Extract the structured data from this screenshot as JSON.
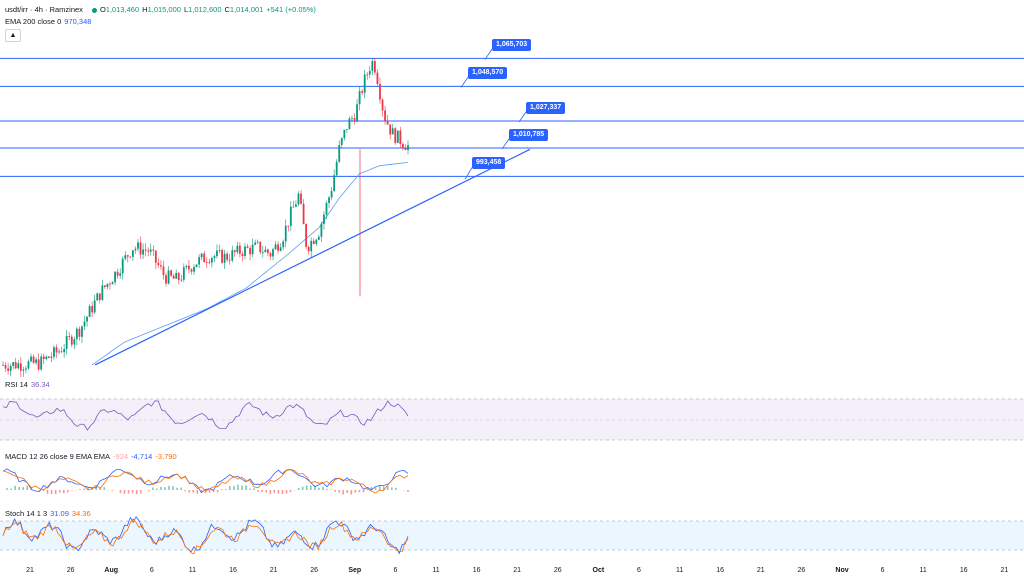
{
  "header": {
    "symbol": "usdt/irr · 4h · Ramzinex",
    "open_label": "O",
    "open": "1,013,460",
    "high_label": "H",
    "high": "1,015,000",
    "low_label": "L",
    "low": "1,012,600",
    "close_label": "C",
    "close": "1,014,001",
    "change": "+541 (+0.05%)",
    "ema_label": "EMA 200 close 0",
    "ema_value": "970,348",
    "collapse_icon": "chevron-up-icon"
  },
  "indicators": {
    "rsi": {
      "label": "RSI 14",
      "value": "36.34",
      "upper": 70,
      "lower": 30
    },
    "macd": {
      "label": "MACD 12 26 close 9 EMA EMA",
      "hist": "-924",
      "macd": "-4,714",
      "signal": "-3,790"
    },
    "stoch": {
      "label": "Stoch 14 1 3",
      "k": "31.09",
      "d": "34.36",
      "upper": 80,
      "lower": 20
    }
  },
  "colors": {
    "up": "#089981",
    "down": "#f23645",
    "ema": "#5b9cf6",
    "level": "#2962ff",
    "rsi": "#7e57c2",
    "macd": "#2962ff",
    "signal": "#ff6d00",
    "stoch_k": "#2962ff",
    "stoch_d": "#ff6d00"
  },
  "chart_data": {
    "type": "line",
    "price_scale": {
      "min": 870000,
      "max": 1080000
    },
    "levels": [
      1065703,
      1048570,
      1027337,
      1010785,
      993458
    ],
    "level_labels": [
      "1,065,703",
      "1,048,570",
      "1,027,337",
      "1,010,785",
      "993,458"
    ],
    "trendline": {
      "from": [
        "Jul 23",
        878000
      ],
      "to": [
        "Sep 10",
        1010000
      ]
    },
    "x_ticks": [
      "21",
      "26",
      "Aug",
      "6",
      "11",
      "16",
      "21",
      "26",
      "Sep",
      "6",
      "11",
      "16",
      "21",
      "26",
      "Oct",
      "6",
      "11",
      "16",
      "21",
      "26",
      "Nov",
      "6",
      "11",
      "16",
      "21"
    ],
    "x_ticks_bold": [
      "Aug",
      "Sep",
      "Oct",
      "Nov"
    ],
    "price_path_waypoints": [
      [
        0,
        878000
      ],
      [
        9,
        879000
      ],
      [
        14,
        887000
      ],
      [
        19,
        900000
      ],
      [
        24,
        922000
      ],
      [
        28,
        935000
      ],
      [
        32,
        950000
      ],
      [
        36,
        948000
      ],
      [
        40,
        932000
      ],
      [
        43,
        930000
      ],
      [
        47,
        940000
      ],
      [
        51,
        945000
      ],
      [
        55,
        944000
      ],
      [
        59,
        948000
      ],
      [
        63,
        950000
      ],
      [
        66,
        946000
      ],
      [
        69,
        956000
      ],
      [
        71,
        970000
      ],
      [
        73,
        982000
      ],
      [
        75,
        950000
      ],
      [
        78,
        960000
      ],
      [
        81,
        985000
      ],
      [
        83,
        1010000
      ],
      [
        85,
        1025000
      ],
      [
        87,
        1032000
      ],
      [
        89,
        1050000
      ],
      [
        91,
        1064000
      ],
      [
        92,
        1060000
      ],
      [
        94,
        1032000
      ],
      [
        96,
        1020000
      ],
      [
        98,
        1016000
      ],
      [
        100,
        1012000
      ]
    ],
    "ema_path_waypoints": [
      [
        22,
        878000
      ],
      [
        30,
        892000
      ],
      [
        40,
        902000
      ],
      [
        50,
        912000
      ],
      [
        60,
        925000
      ],
      [
        70,
        945000
      ],
      [
        78,
        962000
      ],
      [
        83,
        980000
      ],
      [
        88,
        995000
      ],
      [
        93,
        1000000
      ],
      [
        100,
        1002000
      ]
    ]
  }
}
